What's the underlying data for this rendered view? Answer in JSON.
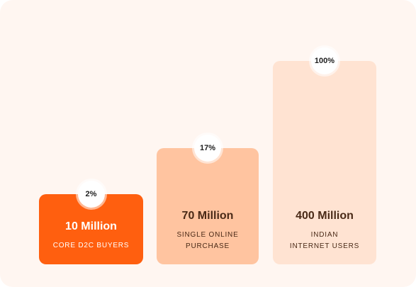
{
  "chart_data": {
    "type": "bar",
    "categories": [
      "CORE D2C BUYERS",
      "SINGLE ONLINE PURCHASE",
      "INDIAN INTERNET USERS"
    ],
    "values": [
      10,
      70,
      400
    ],
    "unit": "Million",
    "value_labels": [
      "10 Million",
      "70 Million",
      "400 Million"
    ],
    "percent_labels": [
      "2%",
      "17%",
      "100%"
    ],
    "label_lines": [
      [
        "CORE D2C BUYERS"
      ],
      [
        "SINGLE ONLINE",
        "PURCHASE"
      ],
      [
        "INDIAN",
        "INTERNET USERS"
      ]
    ],
    "ylim": [
      0,
      400
    ],
    "title": "",
    "xlabel": "",
    "ylabel": ""
  },
  "colors": {
    "card_background": "#fff6f1",
    "bars": [
      "#ff5f0f",
      "#ffc4a0",
      "#ffe3d2"
    ],
    "text": [
      "#ffffff",
      "#4a2a17",
      "#4a2a17"
    ]
  }
}
